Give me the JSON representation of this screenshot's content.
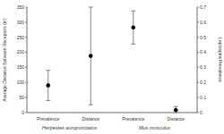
{
  "chart_data": {
    "type": "scatter",
    "categories": [
      "Prevalence",
      "Distance",
      "Prevalence",
      "Distance"
    ],
    "group_labels": [
      "Herpestes auropunctatus",
      "Mus musculus"
    ],
    "y_label": "Average Distance Between Receptors (m)",
    "y2_label": "Leptospira Prevalence",
    "series": [
      {
        "axis": "y2",
        "values": [
          0.18,
          null,
          0.565,
          null
        ],
        "errors": [
          0.1,
          null,
          0.11,
          null
        ],
        "color": "#000000",
        "marker": "circle"
      },
      {
        "values": [
          null,
          188,
          null,
          8
        ],
        "errors": [
          null,
          162,
          null,
          12
        ],
        "color": "#000000",
        "marker": "circle"
      }
    ],
    "ylim": [
      0,
      350
    ],
    "yticks": [
      0,
      50,
      100,
      150,
      200,
      250,
      300,
      350
    ],
    "y2lim": [
      0,
      0.7
    ],
    "y2ticks": [
      0,
      0.1,
      0.2,
      0.3,
      0.4,
      0.5,
      0.6,
      0.7
    ]
  }
}
